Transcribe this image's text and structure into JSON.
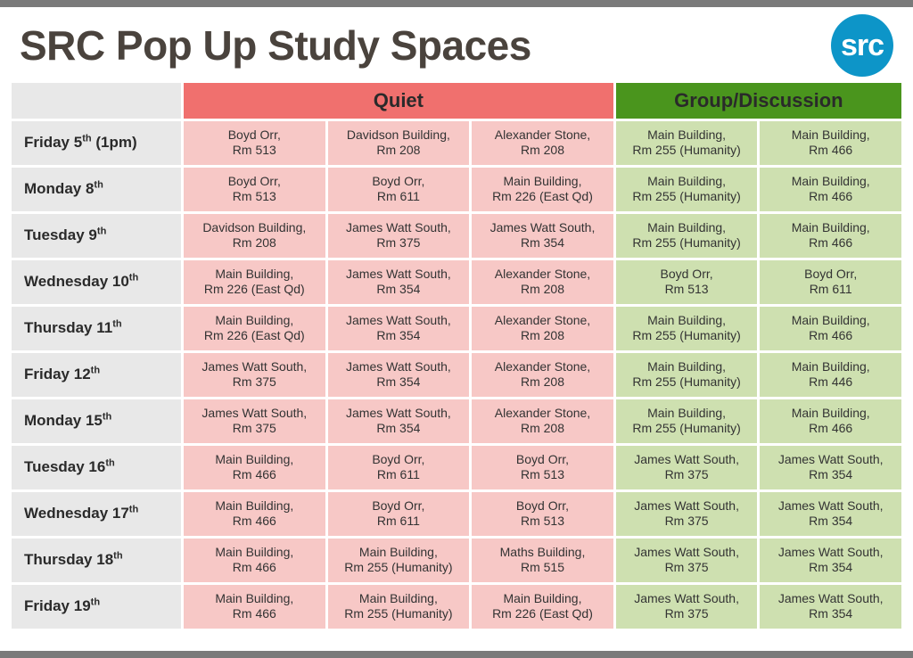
{
  "title": "SRC Pop Up Study Spaces",
  "logo_text": "src",
  "colors": {
    "bar": "#7a7a7a",
    "title": "#4a433d",
    "logo_bg": "#0d95c8",
    "header_quiet": "#f0706e",
    "header_group": "#4a951d",
    "cell_day": "#e8e8e8",
    "cell_quiet": "#f7c8c6",
    "cell_group": "#cee0b0"
  },
  "sections": {
    "quiet": {
      "label": "Quiet",
      "span": 3
    },
    "group": {
      "label": "Group/Discussion",
      "span": 2
    }
  },
  "rows": [
    {
      "day_html": "Friday 5<sup>th</sup> (1pm)",
      "quiet": [
        "Boyd Orr,\nRm 513",
        "Davidson Building,\nRm 208",
        "Alexander Stone,\nRm 208"
      ],
      "group": [
        "Main Building,\nRm 255 (Humanity)",
        "Main Building,\nRm 466"
      ]
    },
    {
      "day_html": "Monday 8<sup>th</sup>",
      "quiet": [
        "Boyd Orr,\nRm 513",
        "Boyd Orr,\nRm 611",
        "Main Building,\nRm 226 (East Qd)"
      ],
      "group": [
        "Main Building,\nRm 255 (Humanity)",
        "Main Building,\nRm 466"
      ]
    },
    {
      "day_html": "Tuesday 9<sup>th</sup>",
      "quiet": [
        "Davidson Building,\nRm 208",
        "James Watt South,\nRm 375",
        "James Watt South,\nRm 354"
      ],
      "group": [
        "Main Building,\nRm 255 (Humanity)",
        "Main Building,\nRm 466"
      ]
    },
    {
      "day_html": "Wednesday 10<sup>th</sup>",
      "quiet": [
        "Main Building,\nRm 226 (East Qd)",
        "James Watt South,\nRm 354",
        "Alexander Stone,\nRm 208"
      ],
      "group": [
        "Boyd Orr,\nRm 513",
        "Boyd Orr,\nRm 611"
      ]
    },
    {
      "day_html": "Thursday 11<sup>th</sup>",
      "quiet": [
        "Main Building,\nRm 226 (East Qd)",
        "James Watt South,\nRm 354",
        "Alexander Stone,\nRm 208"
      ],
      "group": [
        "Main Building,\nRm 255 (Humanity)",
        "Main Building,\nRm 466"
      ]
    },
    {
      "day_html": "Friday 12<sup>th</sup>",
      "quiet": [
        "James Watt South,\nRm 375",
        "James Watt South,\nRm 354",
        "Alexander Stone,\nRm 208"
      ],
      "group": [
        "Main Building,\nRm 255 (Humanity)",
        "Main Building,\nRm 446"
      ]
    },
    {
      "day_html": "Monday 15<sup>th</sup>",
      "quiet": [
        "James Watt South,\nRm 375",
        "James Watt South,\nRm 354",
        "Alexander Stone,\nRm 208"
      ],
      "group": [
        "Main Building,\nRm 255 (Humanity)",
        "Main Building,\nRm 466"
      ]
    },
    {
      "day_html": "Tuesday 16<sup>th</sup>",
      "quiet": [
        "Main Building,\nRm 466",
        "Boyd Orr,\nRm 611",
        "Boyd Orr,\nRm 513"
      ],
      "group": [
        "James Watt South,\nRm 375",
        "James Watt South,\nRm 354"
      ]
    },
    {
      "day_html": "Wednesday 17<sup>th</sup>",
      "quiet": [
        "Main Building,\nRm 466",
        "Boyd Orr,\nRm 611",
        "Boyd Orr,\nRm 513"
      ],
      "group": [
        "James Watt South,\nRm 375",
        "James Watt South,\nRm 354"
      ]
    },
    {
      "day_html": "Thursday 18<sup>th</sup>",
      "quiet": [
        "Main Building,\nRm 466",
        "Main Building,\nRm 255 (Humanity)",
        "Maths Building,\nRm 515"
      ],
      "group": [
        "James Watt South,\nRm 375",
        "James Watt South,\nRm 354"
      ]
    },
    {
      "day_html": "Friday 19<sup>th</sup>",
      "quiet": [
        "Main Building,\nRm 466",
        "Main Building,\nRm 255 (Humanity)",
        "Main Building,\nRm 226 (East Qd)"
      ],
      "group": [
        "James Watt South,\nRm 375",
        "James Watt South,\nRm 354"
      ]
    }
  ]
}
